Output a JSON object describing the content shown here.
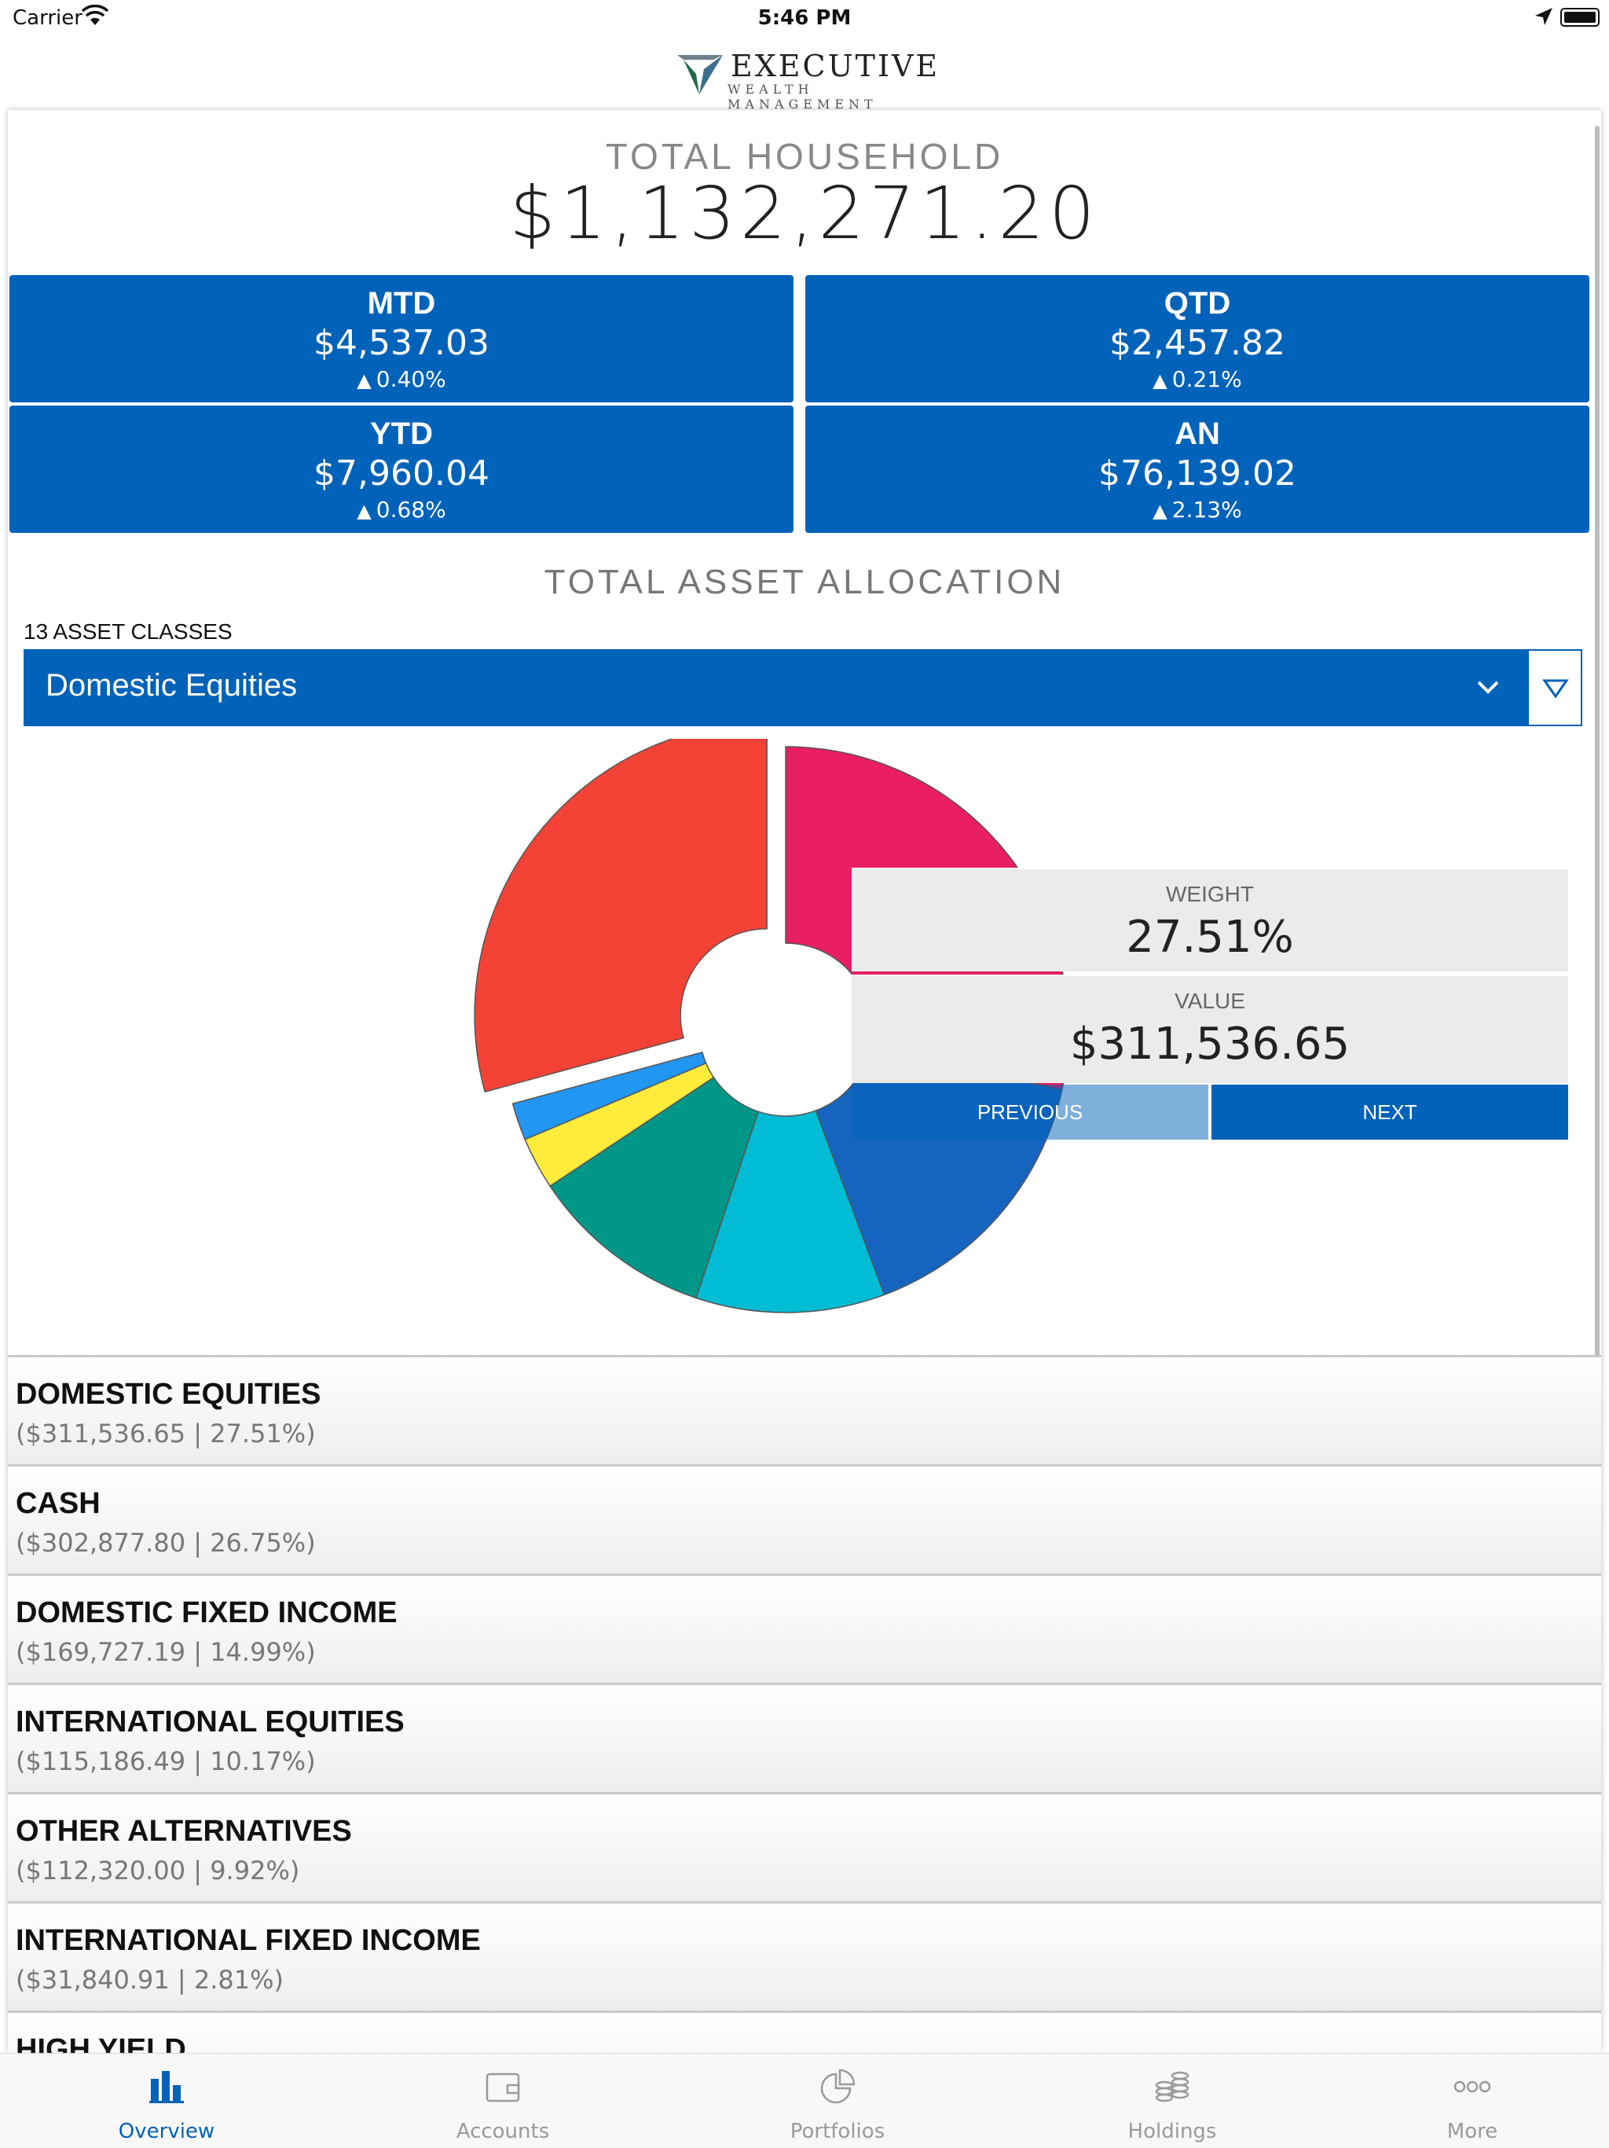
{
  "status": {
    "carrier": "Carrier",
    "time": "5:46 PM"
  },
  "brand": {
    "name": "EXECUTIVE",
    "tagline": "WEALTH MANAGEMENT"
  },
  "summary": {
    "label": "TOTAL HOUSEHOLD",
    "value": "$1,132,271.20",
    "tiles": [
      {
        "label": "MTD",
        "value": "$4,537.03",
        "pct": "0.40%"
      },
      {
        "label": "QTD",
        "value": "$2,457.82",
        "pct": "0.21%"
      },
      {
        "label": "YTD",
        "value": "$7,960.04",
        "pct": "0.68%"
      },
      {
        "label": "AN",
        "value": "$76,139.02",
        "pct": "2.13%"
      }
    ]
  },
  "allocation": {
    "title": "TOTAL ASSET ALLOCATION",
    "count_label": "13 ASSET CLASSES",
    "selected": "Domestic Equities",
    "weight_label": "WEIGHT",
    "weight_value": "27.51%",
    "value_label": "VALUE",
    "value_value": "$311,536.65",
    "prev_label": "PREVIOUS",
    "next_label": "NEXT"
  },
  "chart_data": {
    "type": "pie",
    "categories": [
      "Domestic Equities",
      "Cash",
      "Domestic Fixed Income",
      "International Equities",
      "Other Alternatives",
      "International Fixed Income",
      "High Yield"
    ],
    "values": [
      27.51,
      26.75,
      14.99,
      10.17,
      9.92,
      2.81,
      2.0
    ],
    "colors": [
      "#f44336",
      "#e91e63",
      "#1565c0",
      "#00bcd4",
      "#009688",
      "#ffeb3b",
      "#2196f3"
    ]
  },
  "list": {
    "rows": [
      {
        "name": "DOMESTIC EQUITIES",
        "detail": "($311,536.65 | 27.51%)"
      },
      {
        "name": "CASH",
        "detail": "($302,877.80 | 26.75%)"
      },
      {
        "name": "DOMESTIC FIXED INCOME",
        "detail": "($169,727.19 | 14.99%)"
      },
      {
        "name": "INTERNATIONAL EQUITIES",
        "detail": "($115,186.49 | 10.17%)"
      },
      {
        "name": "OTHER ALTERNATIVES",
        "detail": "($112,320.00 | 9.92%)"
      },
      {
        "name": "INTERNATIONAL FIXED INCOME",
        "detail": "($31,840.91 | 2.81%)"
      },
      {
        "name": "HIGH YIELD",
        "detail": ""
      }
    ]
  },
  "tabs": [
    {
      "label": "Overview",
      "icon": "bar-chart-icon"
    },
    {
      "label": "Accounts",
      "icon": "wallet-icon"
    },
    {
      "label": "Portfolios",
      "icon": "pie-chart-icon"
    },
    {
      "label": "Holdings",
      "icon": "coins-icon"
    },
    {
      "label": "More",
      "icon": "more-icon"
    }
  ]
}
